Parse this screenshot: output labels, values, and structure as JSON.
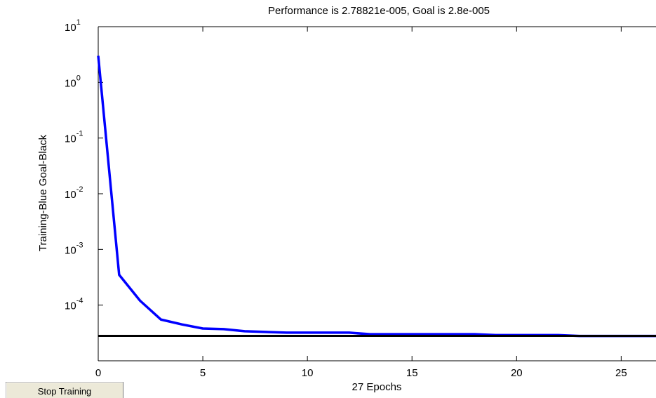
{
  "chart_data": {
    "type": "line",
    "title": "Performance is 2.78821e-005, Goal is 2.8e-005",
    "x_label": "27 Epochs",
    "y_label": "Training-Blue  Goal-Black",
    "log_y": true,
    "x": [
      0,
      1,
      2,
      3,
      4,
      5,
      6,
      7,
      8,
      9,
      10,
      11,
      12,
      13,
      14,
      15,
      16,
      17,
      18,
      19,
      20,
      21,
      22,
      23,
      24,
      25,
      26,
      27
    ],
    "series": [
      {
        "color": "#0000ff",
        "values": [
          3,
          0.00035,
          0.00012,
          5.5e-05,
          4.5e-05,
          3.8e-05,
          3.7e-05,
          3.4e-05,
          3.3e-05,
          3.2e-05,
          3.2e-05,
          3.2e-05,
          3.2e-05,
          3e-05,
          3e-05,
          3e-05,
          3e-05,
          3e-05,
          3e-05,
          2.9e-05,
          2.9e-05,
          2.9e-05,
          2.9e-05,
          2.78821e-05,
          2.78821e-05,
          2.78821e-05,
          2.78821e-05,
          2.78821e-05
        ]
      }
    ],
    "goal": {
      "value": 2.8e-05,
      "color": "#000000"
    },
    "xlim": [
      0,
      27
    ],
    "ylim": [
      1e-05,
      10
    ],
    "xticks": [
      0,
      5,
      10,
      15,
      20,
      25
    ],
    "yticks": [
      {
        "value": 10,
        "label": "10",
        "exponent": "1"
      },
      {
        "value": 1,
        "label": "10",
        "exponent": "0"
      },
      {
        "value": 0.1,
        "label": "10",
        "exponent": "-1"
      },
      {
        "value": 0.01,
        "label": "10",
        "exponent": "-2"
      },
      {
        "value": 0.001,
        "label": "10",
        "exponent": "-3"
      },
      {
        "value": 0.0001,
        "label": "10",
        "exponent": "-4"
      }
    ]
  },
  "button": {
    "label": "Stop Training"
  }
}
